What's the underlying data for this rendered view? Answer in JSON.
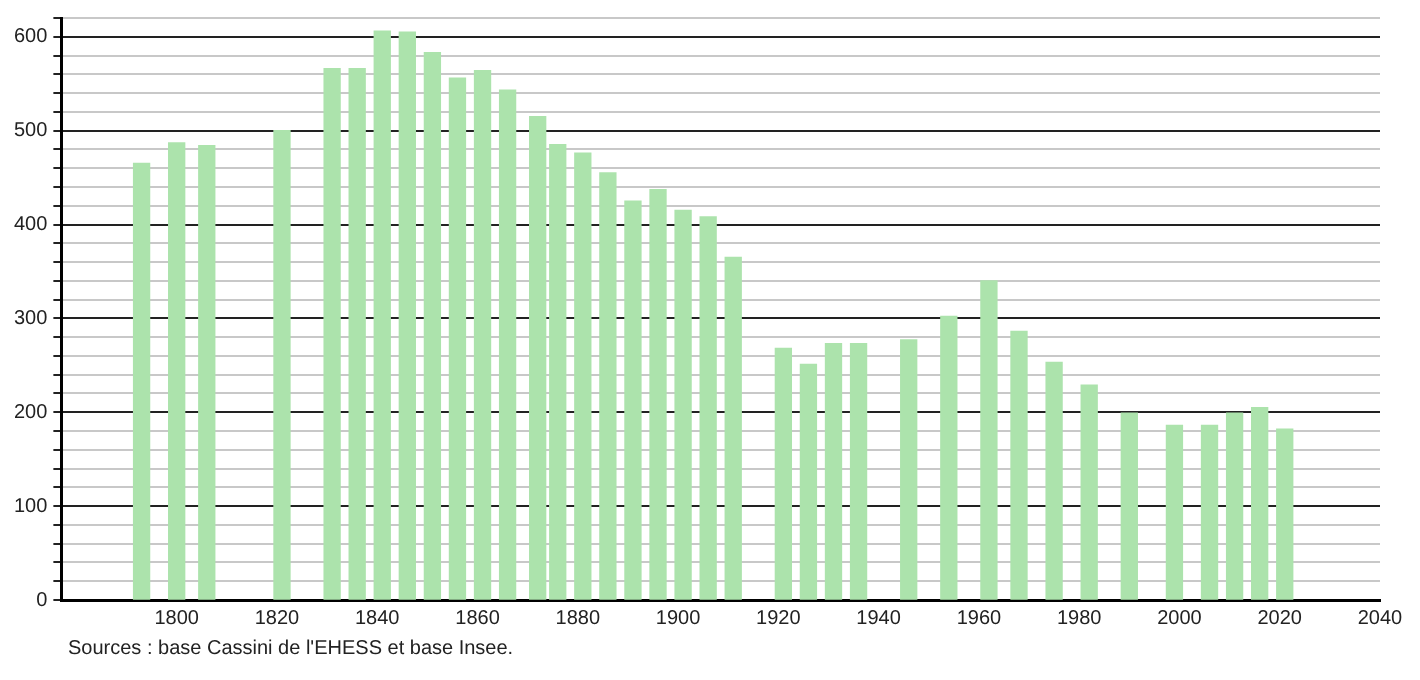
{
  "chart_data": {
    "type": "bar",
    "color": "#ace3ac",
    "x": [
      1793,
      1800,
      1806,
      1821,
      1831,
      1836,
      1841,
      1846,
      1851,
      1856,
      1861,
      1866,
      1872,
      1876,
      1881,
      1886,
      1891,
      1896,
      1901,
      1906,
      1911,
      1921,
      1926,
      1931,
      1936,
      1946,
      1954,
      1962,
      1968,
      1975,
      1982,
      1990,
      1999,
      2006,
      2011,
      2016,
      2021
    ],
    "values": [
      465,
      487,
      484,
      500,
      566,
      566,
      606,
      605,
      583,
      556,
      564,
      543,
      515,
      485,
      476,
      455,
      425,
      437,
      415,
      408,
      365,
      268,
      251,
      273,
      273,
      277,
      302,
      340,
      286,
      253,
      229,
      199,
      186,
      186,
      199,
      205,
      182
    ],
    "xlim": [
      1777,
      2040
    ],
    "xticks": [
      1800,
      1820,
      1840,
      1860,
      1880,
      1900,
      1920,
      1940,
      1960,
      1980,
      2000,
      2020,
      2040
    ],
    "ylim": [
      0,
      620
    ],
    "yticks": [
      0,
      {
        "value": 20,
        "label": null
      },
      {
        "value": 40,
        "label": null
      },
      {
        "value": 60,
        "label": null
      },
      {
        "value": 80,
        "label": null
      },
      100,
      {
        "value": 120,
        "label": null
      },
      {
        "value": 140,
        "label": null
      },
      {
        "value": 160,
        "label": null
      },
      {
        "value": 180,
        "label": null
      },
      200,
      {
        "value": 220,
        "label": null
      },
      {
        "value": 240,
        "label": null
      },
      {
        "value": 260,
        "label": null
      },
      {
        "value": 280,
        "label": null
      },
      300,
      {
        "value": 320,
        "label": null
      },
      {
        "value": 340,
        "label": null
      },
      {
        "value": 360,
        "label": null
      },
      {
        "value": 380,
        "label": null
      },
      400,
      {
        "value": 420,
        "label": null
      },
      {
        "value": 440,
        "label": null
      },
      {
        "value": 460,
        "label": null
      },
      {
        "value": 480,
        "label": null
      },
      500,
      {
        "value": 520,
        "label": null
      },
      {
        "value": 540,
        "label": null
      },
      {
        "value": 560,
        "label": null
      },
      {
        "value": 580,
        "label": null
      },
      600,
      {
        "value": 620,
        "label": null
      }
    ],
    "grid": "y",
    "legend": false,
    "annotations": [
      "Sources : base Cassini de l'EHESS et base Insee."
    ]
  }
}
